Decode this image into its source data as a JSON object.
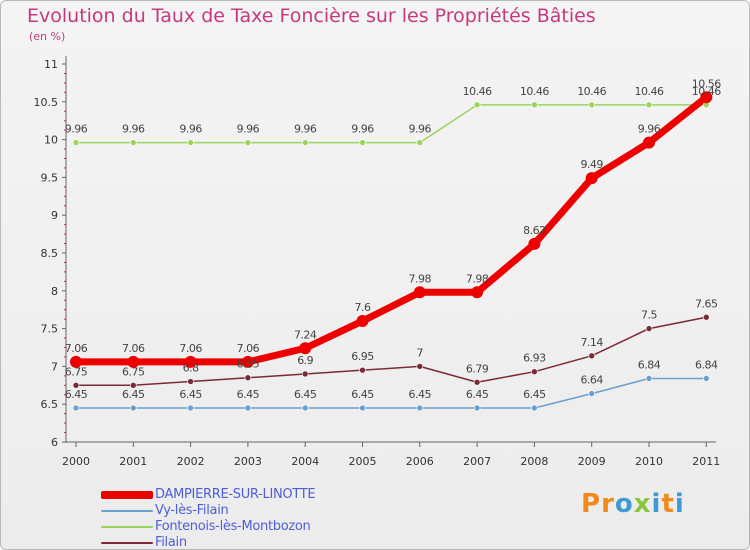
{
  "header": {
    "title": "Evolution du Taux de Taxe Foncière sur les Propriétés Bâties",
    "unit": "(en %)"
  },
  "logo": {
    "text": "Proxiti",
    "letters": [
      "P",
      "r",
      "o",
      "x",
      "i",
      "t",
      "i"
    ],
    "colors": [
      "#f08a1c",
      "#f08a1c",
      "#3f9ad6",
      "#8bc53f",
      "#3f9ad6",
      "#f08a1c",
      "#3f9ad6"
    ]
  },
  "chart_data": {
    "type": "line",
    "title": "Evolution du Taux de Taxe Foncière sur les Propriétés Bâties",
    "ylabel": "(en %)",
    "xlabel": "",
    "x": [
      "2000",
      "2001",
      "2002",
      "2003",
      "2004",
      "2005",
      "2006",
      "2007",
      "2008",
      "2009",
      "2010",
      "2011"
    ],
    "ylim": [
      6,
      11
    ],
    "yticks": [
      "6",
      "6.5",
      "7",
      "7.5",
      "8",
      "8.5",
      "9",
      "9.5",
      "10",
      "10.5",
      "11"
    ],
    "grid": false,
    "legend_position": "bottom-left",
    "series": [
      {
        "name": "DAMPIERRE-SUR-LINOTTE",
        "color": "#ee0000",
        "values": [
          7.06,
          7.06,
          7.06,
          7.06,
          7.24,
          7.6,
          7.98,
          7.98,
          8.62,
          9.49,
          9.96,
          10.56
        ],
        "labels": [
          "7.06",
          "7.06",
          "7.06",
          "7.06",
          "7.24",
          "7.6",
          "7.98",
          "7.98",
          "8.62",
          "9.49",
          "9.96",
          "10.56"
        ]
      },
      {
        "name": "Vy-lès-Filain",
        "color": "#6a9fd2",
        "values": [
          6.45,
          6.45,
          6.45,
          6.45,
          6.45,
          6.45,
          6.45,
          6.45,
          6.45,
          6.64,
          6.84,
          6.84
        ],
        "labels": [
          "6.45",
          "6.45",
          "6.45",
          "6.45",
          "6.45",
          "6.45",
          "6.45",
          "6.45",
          "6.45",
          "6.64",
          "6.84",
          "6.84"
        ]
      },
      {
        "name": "Fontenois-lès-Montbozon",
        "color": "#9ad45a",
        "values": [
          9.96,
          9.96,
          9.96,
          9.96,
          9.96,
          9.96,
          9.96,
          10.46,
          10.46,
          10.46,
          10.46,
          10.46
        ],
        "labels": [
          "9.96",
          "9.96",
          "9.96",
          "9.96",
          "9.96",
          "9.96",
          "9.96",
          "10.46",
          "10.46",
          "10.46",
          "10.46",
          "10.46"
        ]
      },
      {
        "name": "Filain",
        "color": "#7a2a32",
        "values": [
          6.75,
          6.75,
          6.8,
          6.85,
          6.9,
          6.95,
          7,
          6.79,
          6.93,
          7.14,
          7.5,
          7.65
        ],
        "labels": [
          "6.75",
          "6.75",
          "6.8",
          "6.85",
          "6.9",
          "6.95",
          "7",
          "6.79",
          "6.93",
          "7.14",
          "7.5",
          "7.65"
        ]
      }
    ]
  }
}
